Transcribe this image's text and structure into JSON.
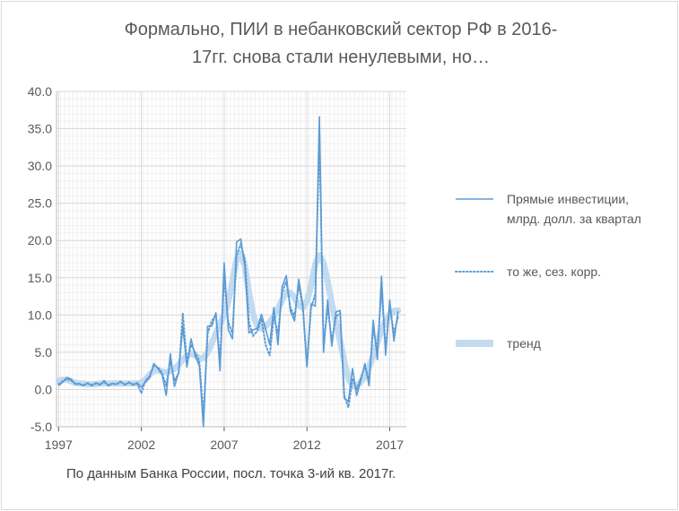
{
  "chart_data": {
    "type": "line",
    "title_lines": [
      "Формально, ПИИ в небанковский сектор РФ в 2016-",
      "17гг. снова стали ненулевыми, но…"
    ],
    "note": "По данным Банка России, посл. точка 3-ий кв. 2017г.",
    "xlabel": "",
    "ylabel": "",
    "xlim": [
      1996.875,
      2018.0
    ],
    "ylim": [
      -5,
      40
    ],
    "y_ticks": [
      "-5.0",
      "0.0",
      "5.0",
      "10.0",
      "15.0",
      "20.0",
      "25.0",
      "30.0",
      "35.0",
      "40.0"
    ],
    "x_ticks": [
      "1997",
      "2002",
      "2007",
      "2012",
      "2017"
    ],
    "grid": true,
    "legend_position": "right",
    "colors": {
      "line": "#5b9bd5",
      "trend": "#bdd7ee",
      "grid": "#d9d9d9",
      "axis": "#595959"
    },
    "series": [
      {
        "name": "Прямые инвестиции, млрд. долл. за квартал",
        "style": "solid",
        "x": [
          1997.0,
          1997.25,
          1997.5,
          1997.75,
          1998.0,
          1998.25,
          1998.5,
          1998.75,
          1999.0,
          1999.25,
          1999.5,
          1999.75,
          2000.0,
          2000.25,
          2000.5,
          2000.75,
          2001.0,
          2001.25,
          2001.5,
          2001.75,
          2002.0,
          2002.25,
          2002.5,
          2002.75,
          2003.0,
          2003.25,
          2003.5,
          2003.75,
          2004.0,
          2004.25,
          2004.5,
          2004.75,
          2005.0,
          2005.25,
          2005.5,
          2005.75,
          2006.0,
          2006.25,
          2006.5,
          2006.75,
          2007.0,
          2007.25,
          2007.5,
          2007.75,
          2008.0,
          2008.25,
          2008.5,
          2008.75,
          2009.0,
          2009.25,
          2009.5,
          2009.75,
          2010.0,
          2010.25,
          2010.5,
          2010.75,
          2011.0,
          2011.25,
          2011.5,
          2011.75,
          2012.0,
          2012.25,
          2012.5,
          2012.75,
          2013.0,
          2013.25,
          2013.5,
          2013.75,
          2014.0,
          2014.25,
          2014.5,
          2014.75,
          2015.0,
          2015.25,
          2015.5,
          2015.75,
          2016.0,
          2016.25,
          2016.5,
          2016.75,
          2017.0,
          2017.25,
          2017.5
        ],
        "values": [
          0.5,
          1.0,
          1.6,
          1.4,
          0.7,
          0.8,
          0.5,
          0.9,
          0.5,
          0.9,
          0.6,
          1.2,
          0.5,
          0.8,
          0.7,
          1.1,
          0.6,
          1.0,
          0.6,
          0.9,
          0.3,
          1.0,
          1.6,
          3.5,
          2.8,
          2.0,
          -0.8,
          4.8,
          0.4,
          2.3,
          8.5,
          3.0,
          6.8,
          4.5,
          3.2,
          -5.0,
          8.5,
          8.5,
          10.3,
          2.5,
          17.0,
          8.0,
          6.8,
          19.8,
          20.2,
          16.5,
          7.6,
          8.0,
          8.2,
          10.1,
          8.1,
          6.0,
          11.0,
          6.0,
          13.8,
          15.3,
          10.5,
          9.2,
          14.8,
          11.4,
          3.0,
          11.5,
          11.2,
          36.6,
          5.0,
          12.0,
          5.8,
          10.4,
          10.6,
          -1.2,
          -1.6,
          2.8,
          -0.8,
          1.2,
          3.5,
          0.5,
          9.3,
          4.0,
          15.2,
          4.6,
          12.0,
          6.5,
          10.5
        ]
      },
      {
        "name": "то же, сез. корр.",
        "style": "dotted",
        "x": [
          1997.0,
          1997.25,
          1997.5,
          1997.75,
          1998.0,
          1998.25,
          1998.5,
          1998.75,
          1999.0,
          1999.25,
          1999.5,
          1999.75,
          2000.0,
          2000.25,
          2000.5,
          2000.75,
          2001.0,
          2001.25,
          2001.5,
          2001.75,
          2002.0,
          2002.25,
          2002.5,
          2002.75,
          2003.0,
          2003.25,
          2003.5,
          2003.75,
          2004.0,
          2004.25,
          2004.5,
          2004.75,
          2005.0,
          2005.25,
          2005.5,
          2005.75,
          2006.0,
          2006.25,
          2006.5,
          2006.75,
          2007.0,
          2007.25,
          2007.5,
          2007.75,
          2008.0,
          2008.25,
          2008.5,
          2008.75,
          2009.0,
          2009.25,
          2009.5,
          2009.75,
          2010.0,
          2010.25,
          2010.5,
          2010.75,
          2011.0,
          2011.25,
          2011.5,
          2011.75,
          2012.0,
          2012.25,
          2012.5,
          2012.75,
          2013.0,
          2013.25,
          2013.5,
          2013.75,
          2014.0,
          2014.25,
          2014.5,
          2014.75,
          2015.0,
          2015.25,
          2015.5,
          2015.75,
          2016.0,
          2016.25,
          2016.5,
          2016.75,
          2017.0,
          2017.25,
          2017.5
        ],
        "values": [
          0.7,
          1.1,
          1.4,
          1.2,
          0.8,
          0.7,
          0.6,
          0.8,
          0.6,
          0.8,
          0.7,
          1.0,
          0.6,
          0.8,
          0.7,
          1.0,
          0.7,
          0.9,
          0.7,
          0.8,
          -0.5,
          1.2,
          1.8,
          3.2,
          3.0,
          2.2,
          0.5,
          3.8,
          1.2,
          2.2,
          10.2,
          3.6,
          6.0,
          5.0,
          3.8,
          -3.5,
          7.5,
          9.2,
          10.0,
          4.0,
          15.0,
          9.0,
          7.5,
          18.0,
          19.5,
          17.5,
          9.0,
          7.2,
          7.8,
          9.5,
          6.0,
          4.5,
          9.8,
          7.5,
          13.0,
          14.5,
          11.0,
          9.8,
          14.0,
          11.0,
          3.2,
          11.0,
          12.8,
          34.0,
          6.0,
          11.0,
          6.5,
          9.8,
          10.2,
          -0.8,
          -2.4,
          1.5,
          0.0,
          1.5,
          3.2,
          1.2,
          8.2,
          5.0,
          13.5,
          5.5,
          11.2,
          7.5,
          9.8
        ]
      },
      {
        "name": "тренд",
        "style": "trend",
        "x": [
          1997.0,
          1997.25,
          1997.5,
          1997.75,
          1998.0,
          1998.25,
          1998.5,
          1998.75,
          1999.0,
          1999.25,
          1999.5,
          1999.75,
          2000.0,
          2000.25,
          2000.5,
          2000.75,
          2001.0,
          2001.25,
          2001.5,
          2001.75,
          2002.0,
          2002.25,
          2002.5,
          2002.75,
          2003.0,
          2003.25,
          2003.5,
          2003.75,
          2004.0,
          2004.25,
          2004.5,
          2004.75,
          2005.0,
          2005.25,
          2005.5,
          2005.75,
          2006.0,
          2006.25,
          2006.5,
          2006.75,
          2007.0,
          2007.25,
          2007.5,
          2007.75,
          2008.0,
          2008.25,
          2008.5,
          2008.75,
          2009.0,
          2009.25,
          2009.5,
          2009.75,
          2010.0,
          2010.25,
          2010.5,
          2010.75,
          2011.0,
          2011.25,
          2011.5,
          2011.75,
          2012.0,
          2012.25,
          2012.5,
          2012.75,
          2013.0,
          2013.25,
          2013.5,
          2013.75,
          2014.0,
          2014.25,
          2014.5,
          2014.75,
          2015.0,
          2015.25,
          2015.5,
          2015.75,
          2016.0,
          2016.25,
          2016.5,
          2016.75,
          2017.0,
          2017.25,
          2017.5
        ],
        "values": [
          1.2,
          1.3,
          1.3,
          1.1,
          0.9,
          0.8,
          0.8,
          0.7,
          0.7,
          0.7,
          0.8,
          0.8,
          0.8,
          0.8,
          0.8,
          0.8,
          0.8,
          0.8,
          0.8,
          0.8,
          0.9,
          1.3,
          2.0,
          2.5,
          2.6,
          2.4,
          2.3,
          2.5,
          2.8,
          3.3,
          4.0,
          4.5,
          4.8,
          4.6,
          4.2,
          4.2,
          5.0,
          6.2,
          7.5,
          8.8,
          10.0,
          11.8,
          14.5,
          17.5,
          18.3,
          16.5,
          13.0,
          10.0,
          8.5,
          8.2,
          8.5,
          9.0,
          9.8,
          10.8,
          12.0,
          13.0,
          13.0,
          12.3,
          11.3,
          11.0,
          11.8,
          14.0,
          16.8,
          18.0,
          17.0,
          14.5,
          11.5,
          9.0,
          6.5,
          3.8,
          1.5,
          0.5,
          0.5,
          1.0,
          1.8,
          3.0,
          4.5,
          6.3,
          8.0,
          9.2,
          10.0,
          10.5,
          10.6
        ]
      }
    ]
  }
}
